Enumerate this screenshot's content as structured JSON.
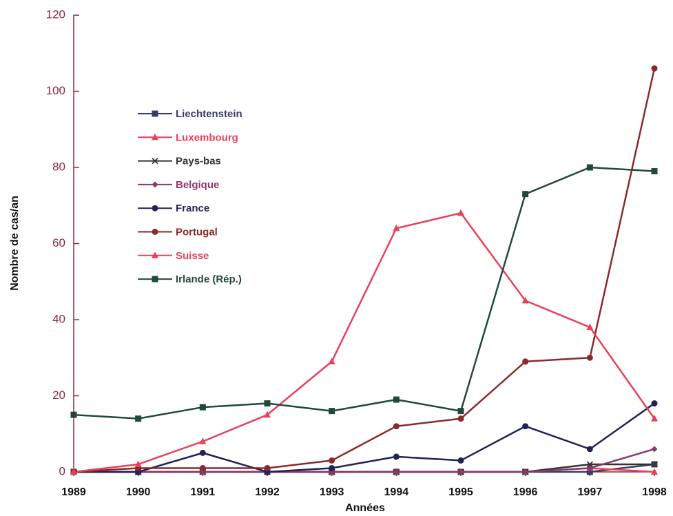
{
  "chart_data": {
    "type": "line",
    "x_label": "Années",
    "y_label": "Nombre de cas/an",
    "categories": [
      "1989",
      "1990",
      "1991",
      "1992",
      "1993",
      "1994",
      "1995",
      "1996",
      "1997",
      "1998"
    ],
    "ylim": [
      0,
      120
    ],
    "yticks": [
      0,
      20,
      40,
      60,
      80,
      100,
      120
    ],
    "legend": "upper left",
    "series": [
      {
        "name": "Liechtenstein",
        "color": "#3a3a6a",
        "marker": "square",
        "values": [
          0,
          0,
          0,
          0,
          0,
          0,
          0,
          0,
          0,
          2
        ]
      },
      {
        "name": "Luxembourg",
        "color": "#e8405a",
        "marker": "triangle",
        "values": [
          0,
          0,
          0,
          0,
          0,
          0,
          0,
          0,
          1,
          0
        ]
      },
      {
        "name": "Pays-bas",
        "color": "#333333",
        "marker": "x",
        "values": [
          0,
          0,
          0,
          0,
          0,
          0,
          0,
          0,
          2,
          2
        ]
      },
      {
        "name": "Belgique",
        "color": "#8a3a6a",
        "marker": "diamond",
        "values": [
          0,
          0,
          0,
          0,
          0,
          0,
          0,
          0,
          1,
          6
        ]
      },
      {
        "name": "France",
        "color": "#22225a",
        "marker": "circle",
        "values": [
          0,
          0,
          5,
          0,
          1,
          4,
          3,
          12,
          6,
          18
        ]
      },
      {
        "name": "Portugal",
        "color": "#8a2a2a",
        "marker": "circle",
        "values": [
          0,
          1,
          1,
          1,
          3,
          12,
          14,
          29,
          30,
          106
        ]
      },
      {
        "name": "Suisse",
        "color": "#e8405a",
        "marker": "triangle",
        "values": [
          0,
          2,
          8,
          15,
          29,
          64,
          68,
          45,
          38,
          14
        ]
      },
      {
        "name": "Irlande (Rép.)",
        "color": "#1f4a3a",
        "marker": "square",
        "values": [
          15,
          14,
          17,
          18,
          16,
          19,
          16,
          73,
          80,
          79
        ]
      }
    ]
  }
}
